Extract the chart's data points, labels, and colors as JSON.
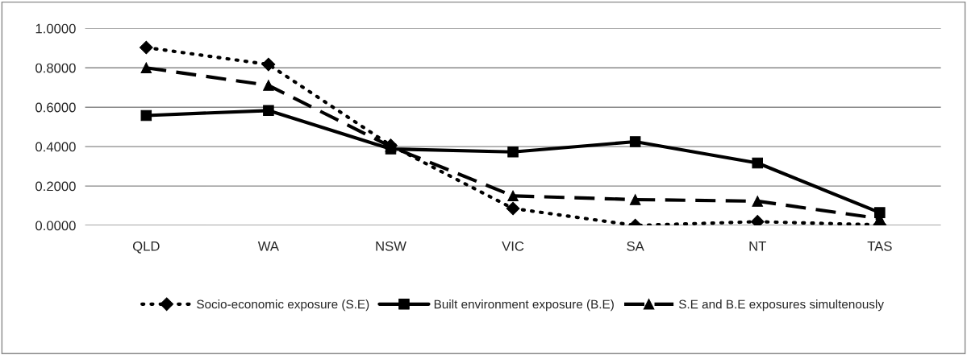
{
  "chart_data": {
    "type": "line",
    "categories": [
      "QLD",
      "WA",
      "NSW",
      "VIC",
      "SA",
      "NT",
      "TAS"
    ],
    "series": [
      {
        "name": "Socio-economic exposure (S.E)",
        "color": "#000000",
        "marker": "diamond",
        "line_style": "dotted",
        "values": [
          0.903,
          0.817,
          0.406,
          0.086,
          0.0,
          0.019,
          0.003
        ]
      },
      {
        "name": "Built environment exposure (B.E)",
        "color": "#000000",
        "marker": "square",
        "line_style": "solid",
        "values": [
          0.558,
          0.583,
          0.388,
          0.373,
          0.425,
          0.317,
          0.065
        ]
      },
      {
        "name": "S.E and B.E exposures simultenously",
        "color": "#000000",
        "marker": "triangle",
        "line_style": "dashed",
        "values": [
          0.8,
          0.711,
          0.4,
          0.15,
          0.131,
          0.123,
          0.035
        ]
      }
    ],
    "ylim": [
      0,
      1
    ],
    "yticks": [
      {
        "value": 0,
        "label": "0.0000"
      },
      {
        "value": 0.2,
        "label": "0.2000"
      },
      {
        "value": 0.4,
        "label": "0.4000"
      },
      {
        "value": 0.6,
        "label": "0.6000"
      },
      {
        "value": 0.8,
        "label": "0.8000"
      },
      {
        "value": 1,
        "label": "1.0000"
      }
    ],
    "grid": "y",
    "legend": "bottom"
  }
}
